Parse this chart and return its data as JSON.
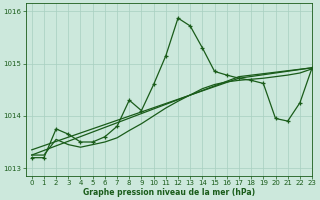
{
  "bg_color": "#cce8dc",
  "line_color": "#1a5c1a",
  "grid_color": "#a8cfc0",
  "xlabel": "Graphe pression niveau de la mer (hPa)",
  "ylim": [
    1012.85,
    1016.15
  ],
  "xlim": [
    -0.5,
    23
  ],
  "yticks": [
    1013,
    1014,
    1015,
    1016
  ],
  "xticks": [
    0,
    1,
    2,
    3,
    4,
    5,
    6,
    7,
    8,
    9,
    10,
    11,
    12,
    13,
    14,
    15,
    16,
    17,
    18,
    19,
    20,
    21,
    22,
    23
  ],
  "line_main": {
    "x": [
      0,
      1,
      2,
      3,
      4,
      5,
      6,
      7,
      8,
      9,
      10,
      11,
      12,
      13,
      14,
      15,
      16,
      17,
      18,
      19,
      20,
      21,
      22,
      23
    ],
    "y": [
      1013.2,
      1013.2,
      1013.75,
      1013.65,
      1013.5,
      1013.5,
      1013.6,
      1013.8,
      1014.3,
      1014.1,
      1014.6,
      1015.15,
      1015.87,
      1015.72,
      1015.3,
      1014.85,
      1014.78,
      1014.72,
      1014.68,
      1014.62,
      1013.95,
      1013.9,
      1014.25,
      1014.92
    ]
  },
  "line_smooth": {
    "x": [
      0,
      1,
      2,
      3,
      4,
      5,
      6,
      7,
      8,
      9,
      10,
      11,
      12,
      13,
      14,
      15,
      16,
      17,
      18,
      19,
      20,
      21,
      22,
      23
    ],
    "y": [
      1013.25,
      1013.25,
      1013.55,
      1013.45,
      1013.4,
      1013.45,
      1013.5,
      1013.58,
      1013.72,
      1013.85,
      1014.0,
      1014.15,
      1014.28,
      1014.4,
      1014.52,
      1014.6,
      1014.65,
      1014.68,
      1014.7,
      1014.72,
      1014.75,
      1014.78,
      1014.82,
      1014.9
    ]
  },
  "line_diag1": {
    "x": [
      0,
      17,
      23
    ],
    "y": [
      1013.25,
      1014.75,
      1014.92
    ]
  },
  "line_diag2": {
    "x": [
      0,
      17,
      23
    ],
    "y": [
      1013.35,
      1014.72,
      1014.92
    ]
  }
}
